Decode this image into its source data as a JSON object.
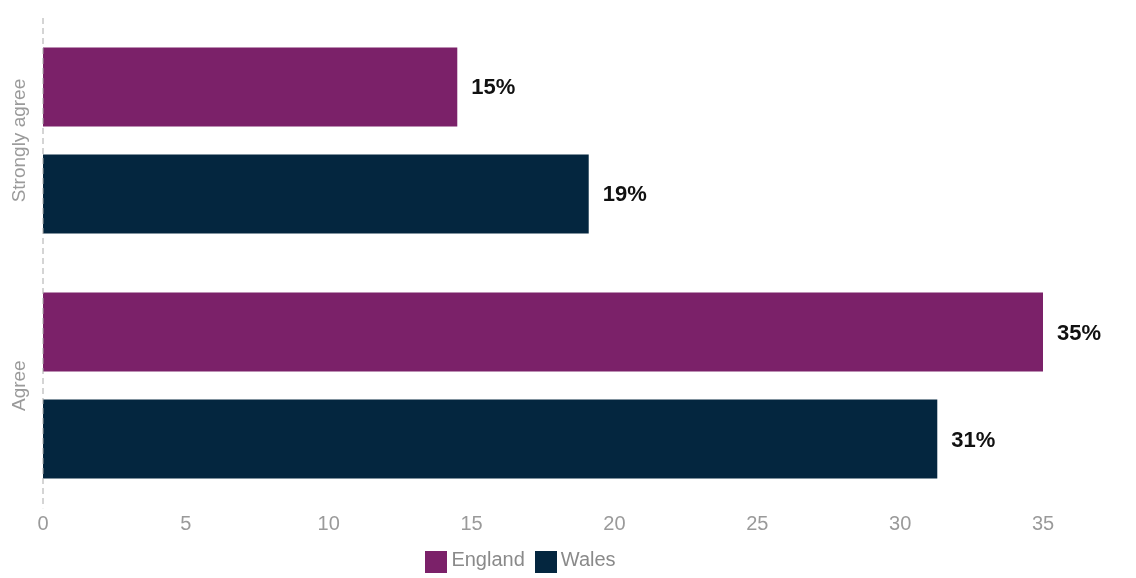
{
  "chart_data": {
    "type": "bar",
    "orientation": "horizontal",
    "categories": [
      "Strongly agree",
      "Agree"
    ],
    "series": [
      {
        "name": "England",
        "color": "#7b2169",
        "values": [
          14.5,
          35
        ],
        "value_labels": [
          "15%",
          "35%"
        ]
      },
      {
        "name": "Wales",
        "color": "#04263f",
        "values": [
          19.1,
          31.3
        ],
        "value_labels": [
          "19%",
          "31%"
        ]
      }
    ],
    "xlim": [
      0,
      35
    ],
    "xticks": [
      0,
      5,
      10,
      15,
      20,
      25,
      30,
      35
    ],
    "legend": "bottom"
  }
}
